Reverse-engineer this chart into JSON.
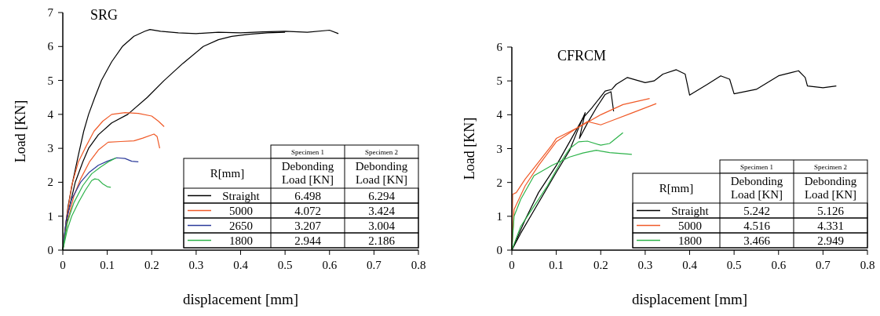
{
  "chart_data": [
    {
      "type": "line",
      "title": "SRG",
      "xlabel": "displacement [mm]",
      "ylabel": "Load [KN]",
      "xlim": [
        0,
        0.8
      ],
      "xticks": [
        0,
        0.1,
        0.2,
        0.3,
        0.4,
        0.5,
        0.6,
        0.7,
        0.8
      ],
      "ylim": [
        0,
        7
      ],
      "yticks": [
        0,
        1,
        2,
        3,
        4,
        5,
        6,
        7
      ],
      "legend": "bottom right",
      "annotations": [
        "R[mm]",
        "Specimen 1",
        "Specimen 2",
        "Debonding Load [KN]",
        "Debonding Load [KN]",
        "6.498",
        "6.294",
        "4.072",
        "3.424",
        "3.207",
        "3.004",
        "2.944",
        "2.186"
      ],
      "series": [
        {
          "name": "Straight",
          "color": "#000000",
          "x": [
            0,
            0.005,
            0.012,
            0.022,
            0.035,
            0.047,
            0.058,
            0.072,
            0.087,
            0.11,
            0.134,
            0.16,
            0.185,
            0.196,
            0.22,
            0.26,
            0.3,
            0.35,
            0.4,
            0.45,
            0.5,
            0.55,
            0.6,
            0.62
          ],
          "values": [
            0,
            0.6,
            1.3,
            2.0,
            2.8,
            3.5,
            4.0,
            4.5,
            5.0,
            5.55,
            6.0,
            6.3,
            6.45,
            6.5,
            6.45,
            6.4,
            6.38,
            6.42,
            6.4,
            6.43,
            6.45,
            6.42,
            6.48,
            6.38
          ]
        },
        {
          "color": "#000000",
          "x": [
            0,
            0.005,
            0.012,
            0.028,
            0.045,
            0.058,
            0.08,
            0.11,
            0.146,
            0.19,
            0.228,
            0.27,
            0.316,
            0.35,
            0.38,
            0.42,
            0.46,
            0.5
          ],
          "values": [
            0,
            0.5,
            1.1,
            2.0,
            2.6,
            3.0,
            3.4,
            3.75,
            4.0,
            4.5,
            5.0,
            5.5,
            6.0,
            6.2,
            6.3,
            6.36,
            6.4,
            6.42
          ]
        },
        {
          "name": "5000",
          "color": "#f05a28",
          "x": [
            0,
            0.008,
            0.02,
            0.035,
            0.05,
            0.07,
            0.09,
            0.11,
            0.14,
            0.17,
            0.2,
            0.215,
            0.228
          ],
          "values": [
            0,
            0.9,
            1.9,
            2.6,
            3.0,
            3.5,
            3.8,
            4.0,
            4.05,
            4.03,
            3.95,
            3.8,
            3.64
          ]
        },
        {
          "color": "#f05a28",
          "x": [
            0,
            0.01,
            0.025,
            0.04,
            0.06,
            0.08,
            0.102,
            0.13,
            0.16,
            0.18,
            0.205,
            0.212,
            0.218
          ],
          "values": [
            0,
            0.8,
            1.6,
            2.1,
            2.6,
            2.95,
            3.18,
            3.2,
            3.22,
            3.3,
            3.42,
            3.35,
            3.0
          ]
        },
        {
          "name": "2650",
          "color": "#2b3a9a",
          "x": [
            0,
            0.008,
            0.02,
            0.04,
            0.06,
            0.08,
            0.1,
            0.121,
            0.14,
            0.155,
            0.17
          ],
          "values": [
            0,
            0.9,
            1.5,
            2.0,
            2.3,
            2.5,
            2.62,
            2.72,
            2.7,
            2.62,
            2.6
          ]
        },
        {
          "color": "#2db34a",
          "x": [
            0,
            0.01,
            0.025,
            0.045,
            0.065,
            0.085,
            0.105,
            0.12
          ],
          "values": [
            0,
            0.8,
            1.4,
            1.9,
            2.25,
            2.45,
            2.62,
            2.72
          ]
        },
        {
          "name": "1800",
          "color": "#2db34a",
          "x": [
            0,
            0.01,
            0.02,
            0.035,
            0.05,
            0.065,
            0.072,
            0.08,
            0.09,
            0.1,
            0.108
          ],
          "values": [
            0,
            0.6,
            1.0,
            1.4,
            1.75,
            2.05,
            2.1,
            2.08,
            1.95,
            1.87,
            1.85
          ]
        }
      ]
    },
    {
      "type": "line",
      "title": "CFRCM",
      "xlabel": "displacement [mm]",
      "ylabel": "Load [KN]",
      "xlim": [
        0,
        0.8
      ],
      "xticks": [
        0,
        0.1,
        0.2,
        0.3,
        0.4,
        0.5,
        0.6,
        0.7,
        0.8
      ],
      "ylim": [
        0,
        6
      ],
      "yticks": [
        0,
        1,
        2,
        3,
        4,
        5,
        6
      ],
      "legend": "bottom right",
      "annotations": [
        "R[mm]",
        "Specimen 1",
        "Specimen 2",
        "Debonding Load [KN]",
        "Debonding Load [KN]",
        "5.242",
        "5.126",
        "4.516",
        "4.331",
        "3.466",
        "2.949"
      ],
      "series": [
        {
          "name": "Straight",
          "color": "#000000",
          "x": [
            0,
            0.03,
            0.06,
            0.1,
            0.13,
            0.16,
            0.18,
            0.21,
            0.225,
            0.235,
            0.26,
            0.3,
            0.32,
            0.34,
            0.37,
            0.39,
            0.4,
            0.44,
            0.47,
            0.49,
            0.5,
            0.55,
            0.6,
            0.63,
            0.645,
            0.66,
            0.665,
            0.7,
            0.73
          ],
          "values": [
            0,
            0.9,
            1.7,
            2.5,
            3.2,
            3.9,
            4.2,
            4.7,
            4.75,
            4.9,
            5.1,
            4.95,
            5.0,
            5.2,
            5.33,
            5.2,
            4.58,
            4.9,
            5.15,
            5.05,
            4.62,
            4.75,
            5.15,
            5.25,
            5.3,
            5.1,
            4.85,
            4.8,
            4.85
          ]
        },
        {
          "color": "#000000",
          "x": [
            0,
            0.02,
            0.06,
            0.1,
            0.13,
            0.15,
            0.165,
            0.152,
            0.17,
            0.19,
            0.21,
            0.223,
            0.229
          ],
          "values": [
            0,
            0.5,
            1.4,
            2.3,
            2.95,
            3.6,
            4.06,
            3.3,
            3.75,
            4.2,
            4.6,
            4.68,
            4.1
          ]
        },
        {
          "name": "5000",
          "color": "#f05a28",
          "x": [
            0,
            0.002,
            0.01,
            0.03,
            0.06,
            0.09,
            0.1,
            0.13,
            0.16,
            0.2,
            0.25,
            0.31
          ],
          "values": [
            0,
            1.65,
            1.7,
            2.1,
            2.6,
            3.1,
            3.3,
            3.5,
            3.7,
            4.0,
            4.3,
            4.48
          ]
        },
        {
          "color": "#f05a28",
          "x": [
            0,
            0.005,
            0.03,
            0.06,
            0.1,
            0.14,
            0.17,
            0.2,
            0.23,
            0.27,
            0.325
          ],
          "values": [
            0,
            1.2,
            1.9,
            2.5,
            3.2,
            3.55,
            3.8,
            3.7,
            3.85,
            4.05,
            4.33
          ]
        },
        {
          "name": "1800",
          "color": "#2db34a",
          "x": [
            0,
            0.02,
            0.05,
            0.08,
            0.11,
            0.13,
            0.15,
            0.17,
            0.2,
            0.22,
            0.25
          ],
          "values": [
            0,
            0.7,
            1.3,
            1.9,
            2.6,
            3.0,
            3.2,
            3.22,
            3.1,
            3.15,
            3.47
          ]
        },
        {
          "color": "#2db34a",
          "x": [
            0,
            0.005,
            0.02,
            0.05,
            0.09,
            0.13,
            0.16,
            0.19,
            0.22,
            0.27
          ],
          "values": [
            0,
            1.0,
            1.5,
            2.2,
            2.5,
            2.75,
            2.87,
            2.95,
            2.88,
            2.83
          ]
        }
      ]
    }
  ]
}
